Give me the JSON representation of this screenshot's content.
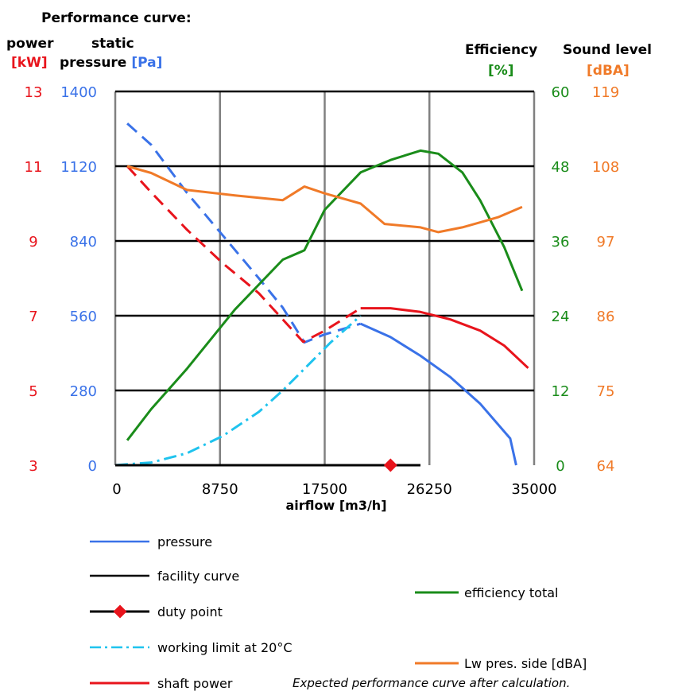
{
  "title": "Performance curve:",
  "axes": {
    "power": {
      "label": "power",
      "unit": "[kW]",
      "color": "#e8141c",
      "ticks": [
        "13",
        "11",
        "9",
        "7",
        "5",
        "3"
      ]
    },
    "pressure": {
      "label_line1": "static",
      "label_line2": "pressure",
      "unit": "[Pa]",
      "color": "#3a72e8",
      "ticks": [
        "1400",
        "1120",
        "840",
        "560",
        "280",
        "0"
      ]
    },
    "efficiency": {
      "label": "Efficiency",
      "unit": "[%]",
      "color": "#1a8c1a",
      "ticks": [
        "60",
        "48",
        "36",
        "24",
        "12",
        "0"
      ]
    },
    "sound": {
      "label": "Sound level",
      "unit": "[dBA]",
      "color": "#f07a28",
      "ticks": [
        "119",
        "108",
        "97",
        "86",
        "75",
        "64"
      ]
    },
    "x": {
      "label": "airflow [m3/h]",
      "ticks": [
        "0",
        "8750",
        "17500",
        "26250",
        "35000"
      ]
    }
  },
  "legend": {
    "pressure": "pressure",
    "facility": "facility curve",
    "duty": "duty point",
    "limit": "working limit at 20°C",
    "shaft": "shaft power",
    "efficiency": "efficiency total",
    "sound": "Lw pres. side [dBA]"
  },
  "note": "Expected performance curve after calculation.",
  "chart_data": {
    "type": "line",
    "title": "Performance curve:",
    "xlabel": "airflow [m3/h]",
    "xlim": [
      0,
      35000
    ],
    "x_ticks": [
      0,
      8750,
      17500,
      26250,
      35000
    ],
    "grid": true,
    "axes": {
      "pressure": {
        "label": "static pressure [Pa]",
        "range": [
          0,
          1400
        ],
        "ticks": [
          0,
          280,
          560,
          840,
          1120,
          1400
        ]
      },
      "power": {
        "label": "power [kW]",
        "range": [
          3,
          13
        ],
        "ticks": [
          3,
          5,
          7,
          9,
          11,
          13
        ]
      },
      "efficiency": {
        "label": "Efficiency [%]",
        "range": [
          0,
          60
        ],
        "ticks": [
          0,
          12,
          24,
          36,
          48,
          60
        ]
      },
      "sound": {
        "label": "Sound level [dBA]",
        "range": [
          64,
          119
        ],
        "ticks": [
          64,
          75,
          86,
          97,
          108,
          119
        ]
      }
    },
    "series": [
      {
        "name": "pressure",
        "axis": "pressure",
        "color": "#3a72e8",
        "style": "dashed",
        "points": [
          [
            1000,
            1280
          ],
          [
            3000,
            1200
          ],
          [
            6000,
            1020
          ],
          [
            9000,
            860
          ],
          [
            12000,
            700
          ],
          [
            14000,
            590
          ],
          [
            15800,
            460
          ],
          [
            17500,
            490
          ],
          [
            19000,
            510
          ],
          [
            20500,
            530
          ]
        ]
      },
      {
        "name": "pressure",
        "axis": "pressure",
        "color": "#3a72e8",
        "style": "solid",
        "points": [
          [
            20500,
            530
          ],
          [
            23000,
            480
          ],
          [
            25500,
            410
          ],
          [
            28000,
            330
          ],
          [
            30500,
            230
          ],
          [
            33000,
            100
          ],
          [
            33500,
            0
          ]
        ]
      },
      {
        "name": "shaft power",
        "axis": "power",
        "color": "#e8141c",
        "style": "dashed",
        "points": [
          [
            1000,
            11.0
          ],
          [
            3000,
            10.3
          ],
          [
            6000,
            9.3
          ],
          [
            9000,
            8.4
          ],
          [
            12000,
            7.6
          ],
          [
            14000,
            6.9
          ],
          [
            15700,
            6.3
          ],
          [
            17500,
            6.6
          ],
          [
            19000,
            6.9
          ],
          [
            20500,
            7.2
          ]
        ]
      },
      {
        "name": "shaft power",
        "axis": "power",
        "color": "#e8141c",
        "style": "solid",
        "points": [
          [
            20500,
            7.2
          ],
          [
            23000,
            7.2
          ],
          [
            25500,
            7.1
          ],
          [
            28000,
            6.9
          ],
          [
            30500,
            6.6
          ],
          [
            32500,
            6.2
          ],
          [
            34500,
            5.6
          ]
        ]
      },
      {
        "name": "efficiency total",
        "axis": "efficiency",
        "color": "#1a8c1a",
        "style": "solid",
        "points": [
          [
            1000,
            4
          ],
          [
            3000,
            9
          ],
          [
            6000,
            15.5
          ],
          [
            10000,
            25
          ],
          [
            14000,
            33
          ],
          [
            15800,
            34.5
          ],
          [
            17500,
            41
          ],
          [
            20500,
            47
          ],
          [
            23000,
            49
          ],
          [
            25500,
            50.5
          ],
          [
            27000,
            50
          ],
          [
            29000,
            47
          ],
          [
            30500,
            42.5
          ],
          [
            32500,
            35
          ],
          [
            34000,
            28
          ]
        ]
      },
      {
        "name": "Lw pres. side [dBA]",
        "axis": "sound",
        "color": "#f07a28",
        "style": "solid",
        "points": [
          [
            1000,
            108
          ],
          [
            3000,
            107
          ],
          [
            6000,
            104.5
          ],
          [
            10000,
            103.7
          ],
          [
            14000,
            103
          ],
          [
            15800,
            105
          ],
          [
            17500,
            104
          ],
          [
            20500,
            102.5
          ],
          [
            22500,
            99.5
          ],
          [
            25500,
            99
          ],
          [
            27000,
            98.3
          ],
          [
            29000,
            99
          ],
          [
            31000,
            100
          ],
          [
            32000,
            100.5
          ],
          [
            34000,
            102
          ]
        ]
      },
      {
        "name": "working limit at 20°C",
        "axis": "pressure",
        "color": "#1fc3ee",
        "style": "dashdot",
        "points": [
          [
            0,
            0
          ],
          [
            3000,
            10
          ],
          [
            6000,
            45
          ],
          [
            9000,
            110
          ],
          [
            12000,
            200
          ],
          [
            14000,
            280
          ],
          [
            16000,
            370
          ],
          [
            18000,
            460
          ],
          [
            20500,
            560
          ]
        ]
      },
      {
        "name": "facility curve",
        "axis": "pressure",
        "color": "#000000",
        "style": "solid",
        "points": [
          [
            0,
            0
          ],
          [
            25500,
            0
          ]
        ]
      },
      {
        "name": "duty point",
        "axis": "pressure",
        "color": "#e8141c",
        "style": "marker",
        "points": [
          [
            23000,
            0
          ]
        ]
      }
    ]
  }
}
